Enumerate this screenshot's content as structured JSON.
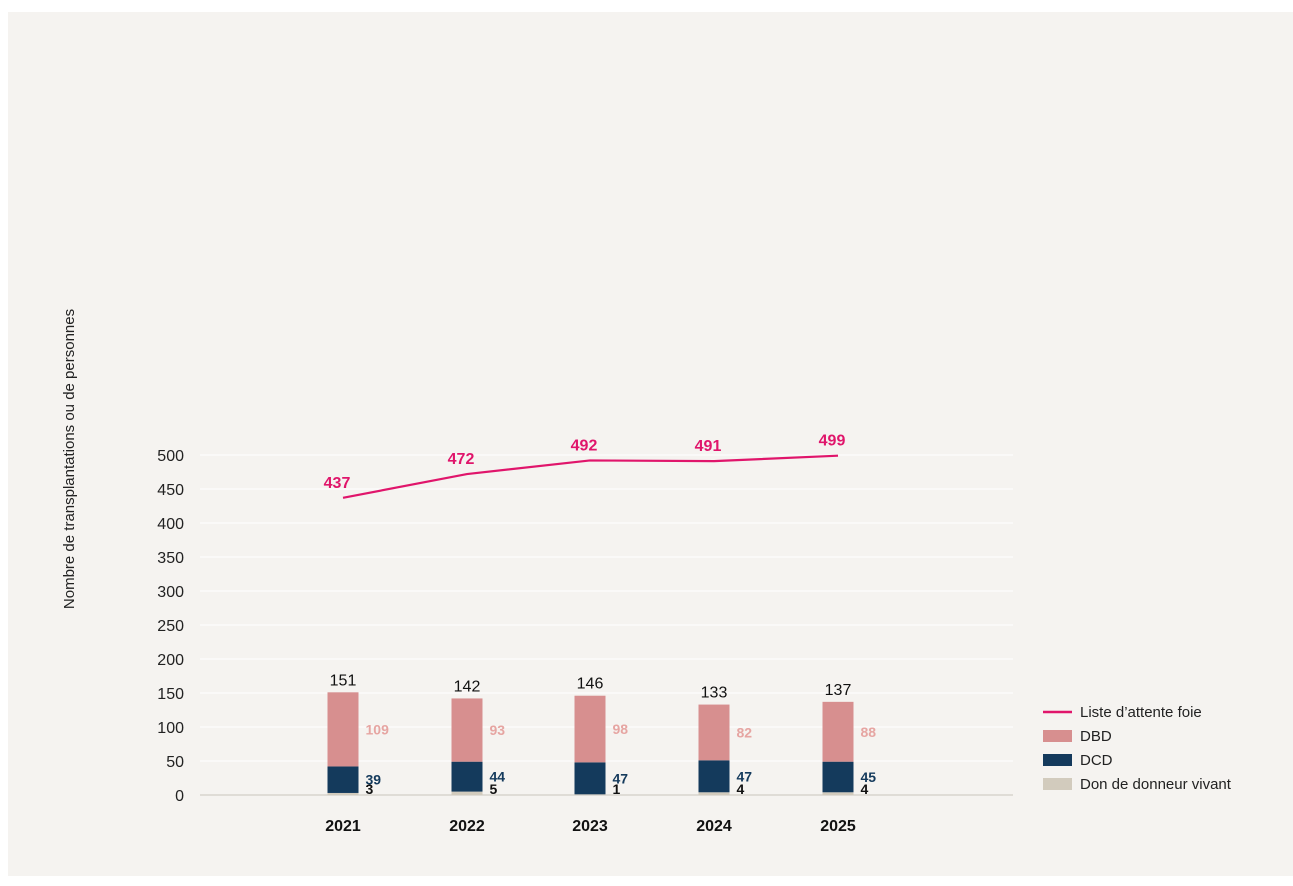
{
  "chart_data": {
    "type": "bar",
    "stacked": true,
    "categories": [
      "2021",
      "2022",
      "2023",
      "2024",
      "2025"
    ],
    "ylabel": "Nombre de transplantations ou de personnes",
    "xlabel": "",
    "ylim": [
      0,
      500
    ],
    "yticks": [
      0,
      50,
      100,
      150,
      200,
      250,
      300,
      350,
      400,
      450,
      500
    ],
    "grid": true,
    "legend_position": "bottom-right",
    "bar_series": [
      {
        "name": "Don de donneur vivant",
        "values": [
          3,
          5,
          1,
          4,
          4
        ],
        "color": "#d2cbbd",
        "label_color": "#111111"
      },
      {
        "name": "DCD",
        "values": [
          39,
          44,
          47,
          47,
          45
        ],
        "color": "#143a5c",
        "label_color": "#143a5c"
      },
      {
        "name": "DBD",
        "values": [
          109,
          93,
          98,
          82,
          88
        ],
        "color": "#d78f8f",
        "label_color": "#e6a5a2"
      }
    ],
    "totals": [
      151,
      142,
      146,
      133,
      137
    ],
    "line_series": {
      "name": "Liste d’attente foie",
      "values": [
        437,
        472,
        492,
        491,
        499
      ],
      "color": "#e0156b"
    },
    "legend_order": [
      "Liste d’attente foie",
      "DBD",
      "DCD",
      "Don de donneur vivant"
    ]
  }
}
